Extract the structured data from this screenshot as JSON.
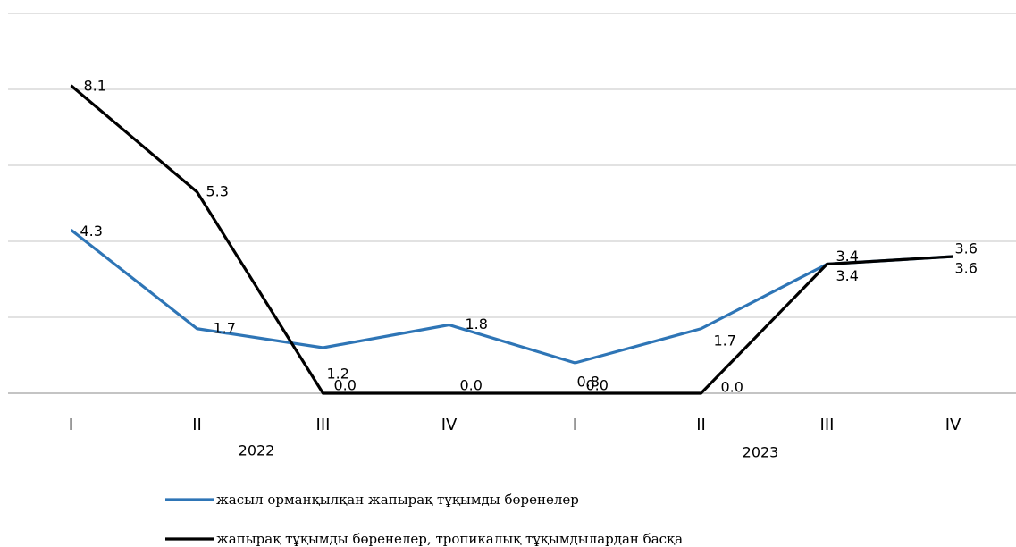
{
  "chart_data": {
    "type": "line",
    "categories": [
      "I",
      "II",
      "III",
      "IV",
      "I",
      "II",
      "III",
      "IV"
    ],
    "year_groups": [
      "2022",
      "2023"
    ],
    "series": [
      {
        "name": "жасыл орманқылқан жапырақ тұқымды бөренелер",
        "color": "#2e75b6",
        "values": [
          4.3,
          1.7,
          1.2,
          1.8,
          0.8,
          1.7,
          3.4,
          3.6
        ],
        "value_labels": [
          "4.3",
          "1.7",
          "1.2",
          "1.8",
          "0.8",
          "1.7",
          "3.4",
          "3.6"
        ]
      },
      {
        "name": "жапырақ тұқымды бөренелер, тропикалық тұқымдылардан басқа",
        "color": "#000000",
        "values": [
          8.1,
          5.3,
          0,
          0,
          0,
          0,
          3.4,
          3.6
        ],
        "value_labels": [
          "8.1",
          "5.3",
          "0.0",
          "0.0",
          "0.0",
          "0.0",
          "3.4",
          "3.6"
        ]
      }
    ],
    "ylim": [
      0,
      10
    ],
    "yticks": [
      0,
      2,
      4,
      6,
      8,
      10
    ],
    "grid": true,
    "legend": "bottom"
  }
}
